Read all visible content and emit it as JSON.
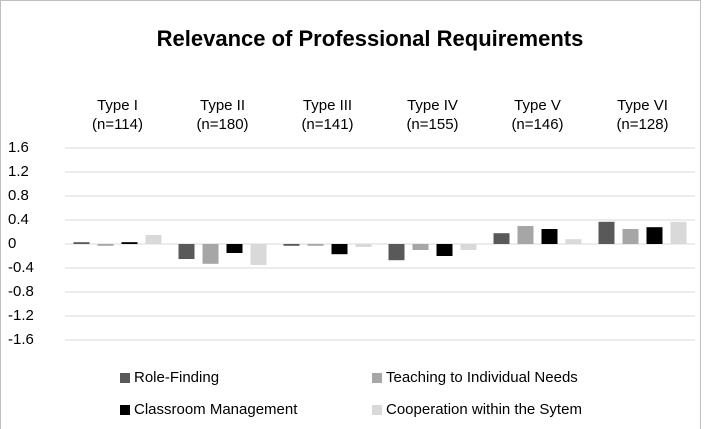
{
  "chart_data": {
    "type": "bar",
    "title": "Relevance of Professional Requirements",
    "categories": [
      "Type I\n(n=114)",
      "Type II\n(n=180)",
      "Type III\n(n=141)",
      "Type IV\n(n=155)",
      "Type V\n(n=146)",
      "Type VI\n(n=128)"
    ],
    "series": [
      {
        "name": "Role-Finding",
        "color": "#595959",
        "values": [
          0.03,
          -0.25,
          -0.03,
          -0.27,
          0.18,
          0.37
        ]
      },
      {
        "name": "Teaching to Individual Needs",
        "color": "#a6a6a6",
        "values": [
          -0.03,
          -0.33,
          -0.03,
          -0.1,
          0.3,
          0.25
        ]
      },
      {
        "name": "Classroom Management",
        "color": "#000000",
        "values": [
          0.03,
          -0.15,
          -0.17,
          -0.2,
          0.25,
          0.28
        ]
      },
      {
        "name": "Cooperation within the Sytem",
        "color": "#d9d9d9",
        "values": [
          0.15,
          -0.35,
          -0.05,
          -0.1,
          0.08,
          0.37
        ]
      }
    ],
    "ylim": [
      -1.6,
      1.6
    ],
    "yticks": [
      1.6,
      1.2,
      0.8,
      0.4,
      0,
      -0.4,
      -0.8,
      -1.2,
      -1.6
    ],
    "grid": true,
    "legend": "bottom"
  }
}
